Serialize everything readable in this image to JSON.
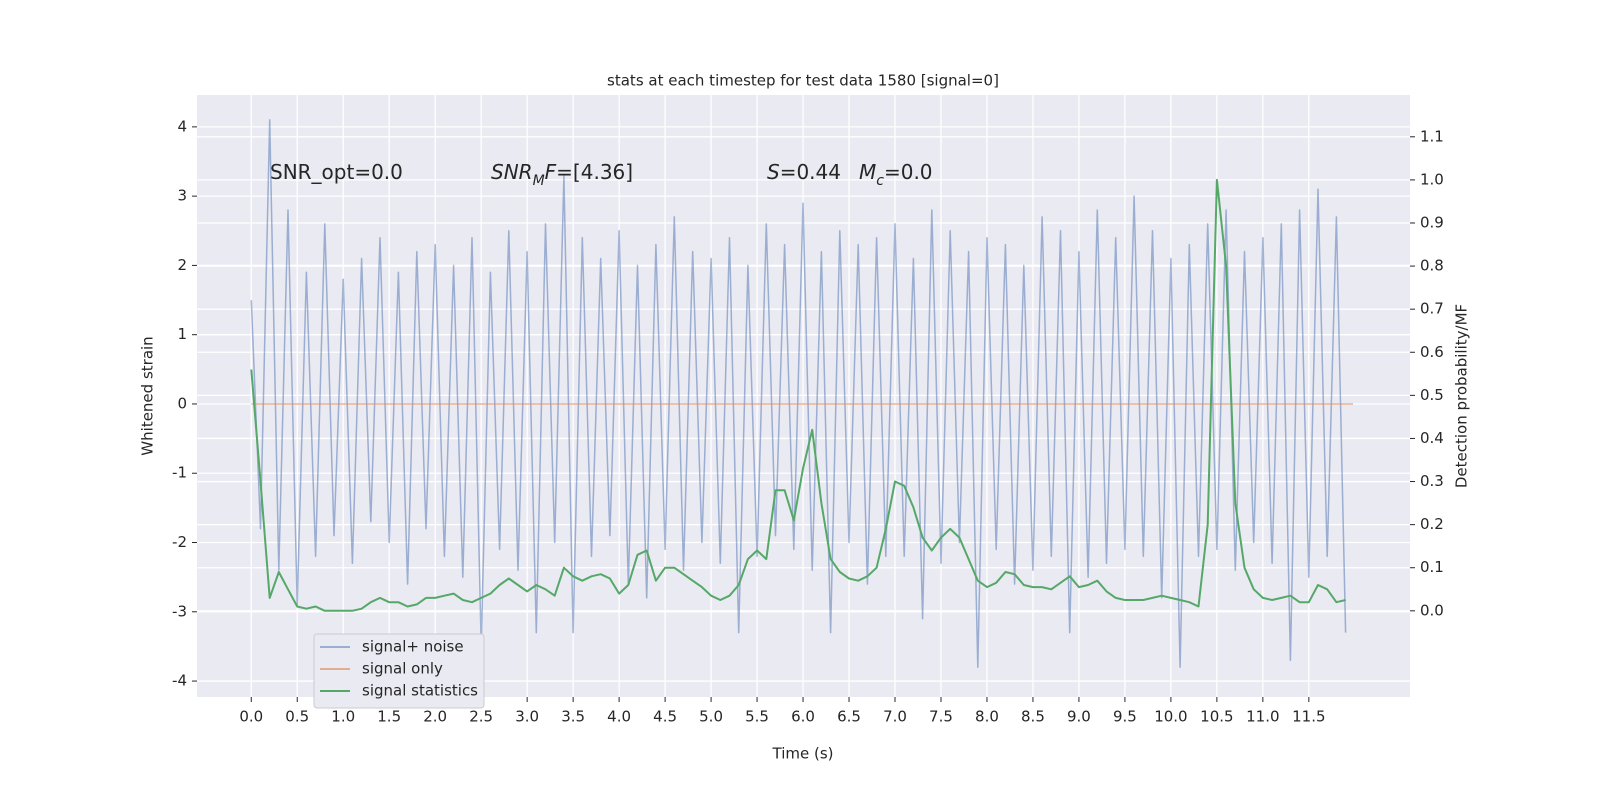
{
  "chart_data": {
    "type": "line",
    "title": "stats at each timestep for test data 1580 [signal=0]",
    "xlabel": "Time (s)",
    "ylabel": "Whitened strain",
    "y2label": "Detection probability/MF",
    "annotations": [
      {
        "parts": [
          {
            "text": "SNR_opt=0.0"
          }
        ]
      },
      {
        "parts": [
          {
            "text": "SNR",
            "italic": true
          },
          {
            "text": "M",
            "italic": true,
            "sub": true
          },
          {
            "text": "F",
            "italic": true
          },
          {
            "text": "=[4.36]"
          }
        ]
      },
      {
        "parts": [
          {
            "text": "S",
            "italic": true
          },
          {
            "text": "=0.44"
          }
        ]
      },
      {
        "parts": [
          {
            "text": "M",
            "italic": true
          },
          {
            "text": "c",
            "italic": true,
            "sub": true
          },
          {
            "text": "=0.0"
          }
        ]
      }
    ],
    "x": [
      0.0,
      0.1,
      0.2,
      0.3,
      0.4,
      0.5,
      0.6,
      0.7,
      0.8,
      0.9,
      1.0,
      1.1,
      1.2,
      1.3,
      1.4,
      1.5,
      1.6,
      1.7,
      1.8,
      1.9,
      2.0,
      2.1,
      2.2,
      2.3,
      2.4,
      2.5,
      2.6,
      2.7,
      2.8,
      2.9,
      3.0,
      3.1,
      3.2,
      3.3,
      3.4,
      3.5,
      3.6,
      3.7,
      3.8,
      3.9,
      4.0,
      4.1,
      4.2,
      4.3,
      4.4,
      4.5,
      4.6,
      4.7,
      4.8,
      4.9,
      5.0,
      5.1,
      5.2,
      5.3,
      5.4,
      5.5,
      5.6,
      5.7,
      5.8,
      5.9,
      6.0,
      6.1,
      6.2,
      6.3,
      6.4,
      6.5,
      6.6,
      6.7,
      6.8,
      6.9,
      7.0,
      7.1,
      7.2,
      7.3,
      7.4,
      7.5,
      7.6,
      7.7,
      7.8,
      7.9,
      8.0,
      8.1,
      8.2,
      8.3,
      8.4,
      8.5,
      8.6,
      8.7,
      8.8,
      8.9,
      9.0,
      9.1,
      9.2,
      9.3,
      9.4,
      9.5,
      9.6,
      9.7,
      9.8,
      9.9,
      10.0,
      10.1,
      10.2,
      10.3,
      10.4,
      10.5,
      10.6,
      10.7,
      10.8,
      10.9,
      11.0,
      11.1,
      11.2,
      11.3,
      11.4,
      11.5,
      11.6,
      11.7,
      11.8,
      11.9
    ],
    "series": [
      {
        "name": "signal+ noise",
        "color": "#4c72b0",
        "values": [
          1.5,
          -1.8,
          4.1,
          -2.4,
          2.8,
          -2.9,
          1.9,
          -2.2,
          2.6,
          -1.9,
          1.8,
          -2.3,
          2.1,
          -1.7,
          2.4,
          -2.0,
          1.9,
          -2.6,
          2.2,
          -1.8,
          2.3,
          -2.2,
          2.0,
          -2.5,
          2.4,
          -3.5,
          1.9,
          -2.1,
          2.5,
          -2.4,
          2.2,
          -3.3,
          2.6,
          -2.0,
          3.3,
          -3.3,
          2.4,
          -2.2,
          2.1,
          -1.9,
          2.5,
          -2.6,
          2.0,
          -2.8,
          2.3,
          -2.1,
          2.7,
          -2.4,
          2.2,
          -2.0,
          2.1,
          -2.3,
          2.4,
          -3.3,
          2.0,
          -2.2,
          2.6,
          -1.9,
          2.3,
          -2.1,
          2.9,
          -2.4,
          2.2,
          -3.3,
          2.5,
          -2.0,
          2.3,
          -2.6,
          2.4,
          -2.2,
          2.6,
          -2.2,
          2.1,
          -3.1,
          2.8,
          -2.3,
          2.5,
          -2.0,
          2.2,
          -3.8,
          2.4,
          -2.1,
          2.3,
          -2.6,
          2.0,
          -2.4,
          2.7,
          -2.2,
          2.5,
          -3.3,
          2.2,
          -2.5,
          2.8,
          -2.3,
          2.4,
          -2.1,
          3.0,
          -2.2,
          2.5,
          -2.8,
          2.1,
          -3.8,
          2.3,
          -2.2,
          2.6,
          -2.1,
          2.8,
          -2.4,
          2.2,
          -2.0,
          2.4,
          -2.3,
          2.6,
          -3.7,
          2.8,
          -2.5,
          3.1,
          -2.2,
          2.7,
          -3.3
        ]
      },
      {
        "name": "signal only",
        "color": "#dd8452",
        "x": [
          0.0,
          11.98
        ],
        "values": [
          0,
          0
        ]
      },
      {
        "name": "signal statistics",
        "color": "#55a868",
        "axis": "y2",
        "values": [
          0.56,
          0.3,
          0.03,
          0.09,
          0.05,
          0.01,
          0.005,
          0.01,
          0.0,
          0.0,
          0.0,
          0.0,
          0.005,
          0.02,
          0.03,
          0.02,
          0.02,
          0.01,
          0.015,
          0.03,
          0.03,
          0.035,
          0.04,
          0.025,
          0.02,
          0.03,
          0.04,
          0.06,
          0.075,
          0.06,
          0.045,
          0.06,
          0.05,
          0.035,
          0.1,
          0.08,
          0.07,
          0.08,
          0.085,
          0.075,
          0.04,
          0.06,
          0.13,
          0.14,
          0.07,
          0.1,
          0.1,
          0.085,
          0.07,
          0.055,
          0.035,
          0.025,
          0.035,
          0.06,
          0.12,
          0.14,
          0.12,
          0.28,
          0.28,
          0.21,
          0.33,
          0.42,
          0.25,
          0.12,
          0.09,
          0.075,
          0.07,
          0.08,
          0.1,
          0.19,
          0.3,
          0.29,
          0.24,
          0.17,
          0.14,
          0.17,
          0.19,
          0.17,
          0.12,
          0.07,
          0.055,
          0.065,
          0.09,
          0.085,
          0.06,
          0.055,
          0.055,
          0.05,
          0.065,
          0.08,
          0.055,
          0.06,
          0.07,
          0.045,
          0.03,
          0.025,
          0.025,
          0.025,
          0.03,
          0.035,
          0.03,
          0.025,
          0.02,
          0.01,
          0.2,
          1.0,
          0.8,
          0.25,
          0.1,
          0.05,
          0.03,
          0.025,
          0.03,
          0.035,
          0.02,
          0.02,
          0.06,
          0.05,
          0.02,
          0.025
        ]
      }
    ],
    "xlim": [
      -0.59,
      12.6
    ],
    "ylim": [
      -4.23,
      4.46
    ],
    "y2lim": [
      -0.2,
      1.197
    ],
    "xticks": [
      {
        "value": 0,
        "label": "0.0"
      },
      {
        "value": 0.5,
        "label": "0.5"
      },
      {
        "value": 1,
        "label": "1.0"
      },
      {
        "value": 1.5,
        "label": "1.5"
      },
      {
        "value": 2,
        "label": "2.0"
      },
      {
        "value": 2.5,
        "label": "2.5"
      },
      {
        "value": 3,
        "label": "3.0"
      },
      {
        "value": 3.5,
        "label": "3.5"
      },
      {
        "value": 4,
        "label": "4.0"
      },
      {
        "value": 4.5,
        "label": "4.5"
      },
      {
        "value": 5,
        "label": "5.0"
      },
      {
        "value": 5.5,
        "label": "5.5"
      },
      {
        "value": 6,
        "label": "6.0"
      },
      {
        "value": 6.5,
        "label": "6.5"
      },
      {
        "value": 7,
        "label": "7.0"
      },
      {
        "value": 7.5,
        "label": "7.5"
      },
      {
        "value": 8,
        "label": "8.0"
      },
      {
        "value": 8.5,
        "label": "8.5"
      },
      {
        "value": 9,
        "label": "9.0"
      },
      {
        "value": 9.5,
        "label": "9.5"
      },
      {
        "value": 10,
        "label": "10.0"
      },
      {
        "value": 10.5,
        "label": "10.5"
      },
      {
        "value": 11,
        "label": "11.0"
      },
      {
        "value": 11.5,
        "label": "11.5"
      }
    ],
    "yticks": [
      -4,
      -3,
      -2,
      -1,
      0,
      1,
      2,
      3,
      4
    ],
    "y2ticks": [
      {
        "value": 0,
        "label": "0.0"
      },
      {
        "value": 0.1,
        "label": "0.1"
      },
      {
        "value": 0.2,
        "label": "0.2"
      },
      {
        "value": 0.3,
        "label": "0.3"
      },
      {
        "value": 0.4,
        "label": "0.4"
      },
      {
        "value": 0.5,
        "label": "0.5"
      },
      {
        "value": 0.6,
        "label": "0.6"
      },
      {
        "value": 0.7,
        "label": "0.7"
      },
      {
        "value": 0.8,
        "label": "0.8"
      },
      {
        "value": 0.9,
        "label": "0.9"
      },
      {
        "value": 1,
        "label": "1.0"
      },
      {
        "value": 1.1,
        "label": "1.1"
      }
    ],
    "grid": true,
    "legend": "lower left"
  }
}
